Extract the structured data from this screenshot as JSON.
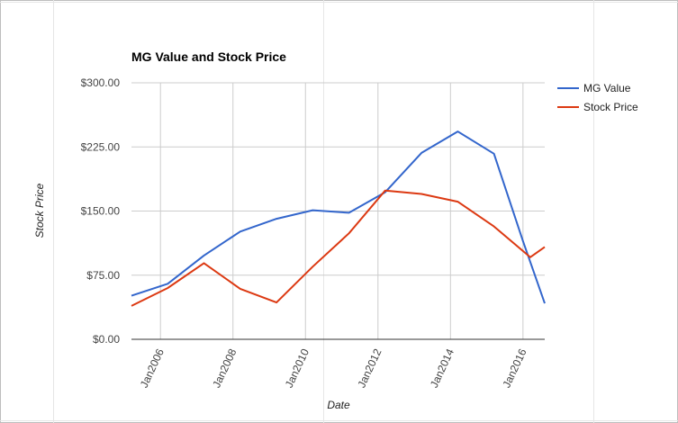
{
  "chart_data": {
    "type": "line",
    "title": "MG Value and Stock Price",
    "xlabel": "Date",
    "ylabel": "Stock Price",
    "x_unit": "year",
    "xlim": [
      2005.2,
      2016.6
    ],
    "ylim": [
      0,
      300
    ],
    "y_ticks": [
      0,
      75,
      150,
      225,
      300
    ],
    "y_tick_labels": [
      "$0.00",
      "$75.00",
      "$150.00",
      "$225.00",
      "$300.00"
    ],
    "x_ticks": [
      2006,
      2008,
      2010,
      2012,
      2014,
      2016
    ],
    "x_tick_labels": [
      "Jan2006",
      "Jan2008",
      "Jan2010",
      "Jan2012",
      "Jan2014",
      "Jan2016"
    ],
    "grid": true,
    "legend_position": "right",
    "series": [
      {
        "name": "MG Value",
        "color": "#3366cc",
        "x": [
          2005.2,
          2006.2,
          2007.2,
          2008.2,
          2009.2,
          2010.2,
          2011.2,
          2012.2,
          2013.2,
          2014.2,
          2015.2,
          2016.0,
          2016.6
        ],
        "values": [
          51,
          65,
          98,
          126,
          141,
          151,
          148,
          172,
          218,
          243,
          217,
          115,
          42
        ]
      },
      {
        "name": "Stock Price",
        "color": "#dc3912",
        "x": [
          2005.2,
          2006.2,
          2007.2,
          2008.2,
          2009.2,
          2010.2,
          2011.2,
          2012.2,
          2013.2,
          2014.2,
          2015.2,
          2016.2,
          2016.6
        ],
        "values": [
          39,
          60,
          89,
          59,
          43,
          85,
          124,
          174,
          170,
          161,
          132,
          96,
          108
        ]
      }
    ]
  }
}
